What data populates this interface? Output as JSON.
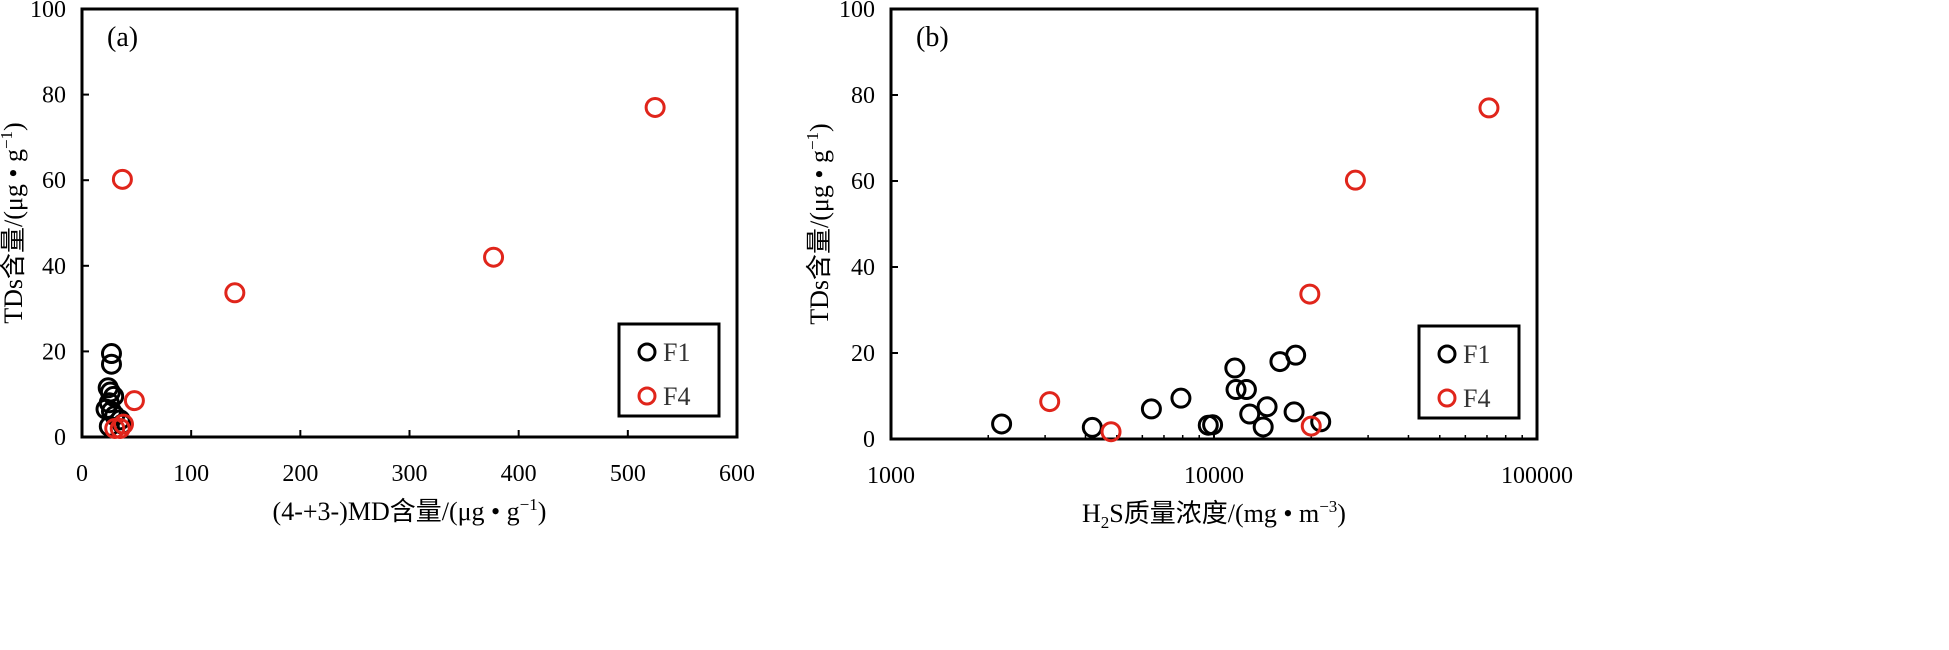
{
  "colors": {
    "F1": "#000000",
    "F4": "#e0251b"
  },
  "chart_data": [
    {
      "type": "scatter",
      "panel_label": "(a)",
      "xlabel": "(4-+3-)MD含量/(μg • g",
      "xlabel_sup": "−1",
      "xlabel_close": ")",
      "ylabel": "TDs含量/(μg • g",
      "ylabel_sup": "−1",
      "ylabel_close": ")",
      "xlim": [
        0,
        600
      ],
      "ylim": [
        0,
        100
      ],
      "x_scale": "linear",
      "x_ticks": [
        "0",
        "100",
        "200",
        "300",
        "400",
        "500",
        "600"
      ],
      "x_tick_values": [
        0,
        100,
        200,
        300,
        400,
        500,
        600
      ],
      "y_ticks": [
        "0",
        "20",
        "40",
        "60",
        "80",
        "100"
      ],
      "y_tick_values": [
        0,
        20,
        40,
        60,
        80,
        100
      ],
      "legend_position": "bottom-right",
      "series": [
        {
          "name": "F1",
          "points": [
            [
              27,
              19.5
            ],
            [
              27,
              17
            ],
            [
              24,
              11.5
            ],
            [
              26,
              10.5
            ],
            [
              29,
              9.5
            ],
            [
              25,
              8
            ],
            [
              22,
              6.5
            ],
            [
              27,
              6
            ],
            [
              30,
              5
            ],
            [
              35,
              4
            ],
            [
              37,
              3
            ],
            [
              25,
              2.5
            ]
          ]
        },
        {
          "name": "F4",
          "points": [
            [
              37,
              60.2
            ],
            [
              48,
              8.5
            ],
            [
              140,
              33.7
            ],
            [
              377,
              42
            ],
            [
              525,
              77
            ],
            [
              30,
              2
            ],
            [
              38,
              3
            ],
            [
              35,
              2
            ]
          ]
        }
      ]
    },
    {
      "type": "scatter",
      "panel_label": "(b)",
      "xlabel": "H",
      "xlabel_sub": "2",
      "xlabel_rest": "S质量浓度/(mg • m",
      "xlabel_sup": "−3",
      "xlabel_close": ")",
      "ylabel": "TDs含量/(μg • g",
      "ylabel_sup": "−1",
      "ylabel_close": ")",
      "xlim": [
        1000,
        100000
      ],
      "ylim": [
        0,
        100
      ],
      "x_scale": "log",
      "x_ticks": [
        "1000",
        "10000",
        "100000"
      ],
      "x_tick_values": [
        1000,
        10000,
        100000
      ],
      "y_ticks": [
        "0",
        "20",
        "40",
        "60",
        "80",
        "100"
      ],
      "y_tick_values": [
        0,
        20,
        40,
        60,
        80,
        100
      ],
      "legend_position": "bottom-right",
      "series": [
        {
          "name": "F1",
          "points": [
            [
              2200,
              3.5
            ],
            [
              4200,
              2.7
            ],
            [
              6400,
              7
            ],
            [
              7900,
              9.5
            ],
            [
              9600,
              3.2
            ],
            [
              9900,
              3.3
            ],
            [
              11600,
              16.5
            ],
            [
              11700,
              11.5
            ],
            [
              12600,
              11.5
            ],
            [
              12900,
              5.8
            ],
            [
              14200,
              2.8
            ],
            [
              14600,
              7.5
            ],
            [
              16000,
              18
            ],
            [
              17900,
              19.5
            ],
            [
              17700,
              6.3
            ],
            [
              21400,
              4
            ]
          ]
        },
        {
          "name": "F4",
          "points": [
            [
              3100,
              8.7
            ],
            [
              4800,
              1.7
            ],
            [
              19800,
              33.7
            ],
            [
              20000,
              3
            ],
            [
              27400,
              60.2
            ],
            [
              71000,
              77
            ]
          ]
        }
      ]
    }
  ]
}
